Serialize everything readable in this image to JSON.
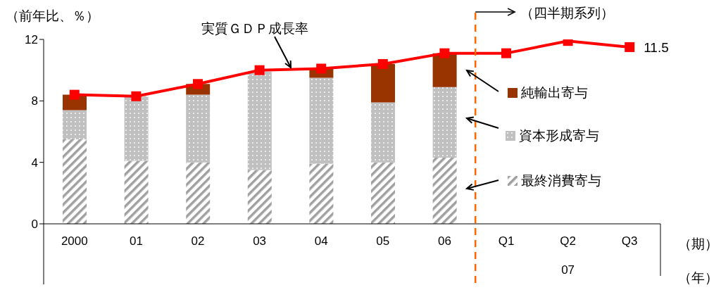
{
  "chart_data": {
    "type": "bar",
    "stacked": true,
    "categories": [
      "2000",
      "01",
      "02",
      "03",
      "04",
      "05",
      "06",
      "Q1",
      "Q2",
      "Q3"
    ],
    "series": [
      {
        "name": "最終消費寄与",
        "color": "#a0a0a0",
        "values": [
          5.5,
          4.1,
          4.0,
          3.5,
          3.9,
          4.0,
          4.3,
          null,
          null,
          null
        ]
      },
      {
        "name": "資本形成寄与",
        "color": "#c0c0c0",
        "values": [
          1.9,
          4.2,
          4.4,
          6.4,
          5.6,
          3.9,
          4.6,
          null,
          null,
          null
        ]
      },
      {
        "name": "純輸出寄与",
        "color": "#993300",
        "values": [
          1.0,
          0,
          0.7,
          0,
          0.6,
          2.5,
          2.2,
          null,
          null,
          null
        ]
      },
      {
        "name": "実質ＧＤＰ成長率",
        "type": "line",
        "color": "#ff0000",
        "marker": "square",
        "values": [
          8.4,
          8.3,
          9.1,
          10.0,
          10.1,
          10.4,
          11.1,
          11.1,
          11.9,
          11.5
        ],
        "value_labels": [
          null,
          null,
          null,
          null,
          null,
          null,
          null,
          null,
          null,
          "11.5"
        ]
      }
    ],
    "ylabel": "（前年比、％）",
    "xlabel": "（期）",
    "ylim": [
      0,
      12
    ],
    "yticks": [
      0,
      4,
      8,
      12
    ],
    "grid": false,
    "legend": "right",
    "ref_lines": [
      {
        "axis": "x",
        "value": "Q1",
        "label": "（四半期系列）",
        "color": "#ff6600",
        "line_style": "dashed"
      }
    ],
    "annotations": [
      "07",
      "（年）"
    ]
  }
}
